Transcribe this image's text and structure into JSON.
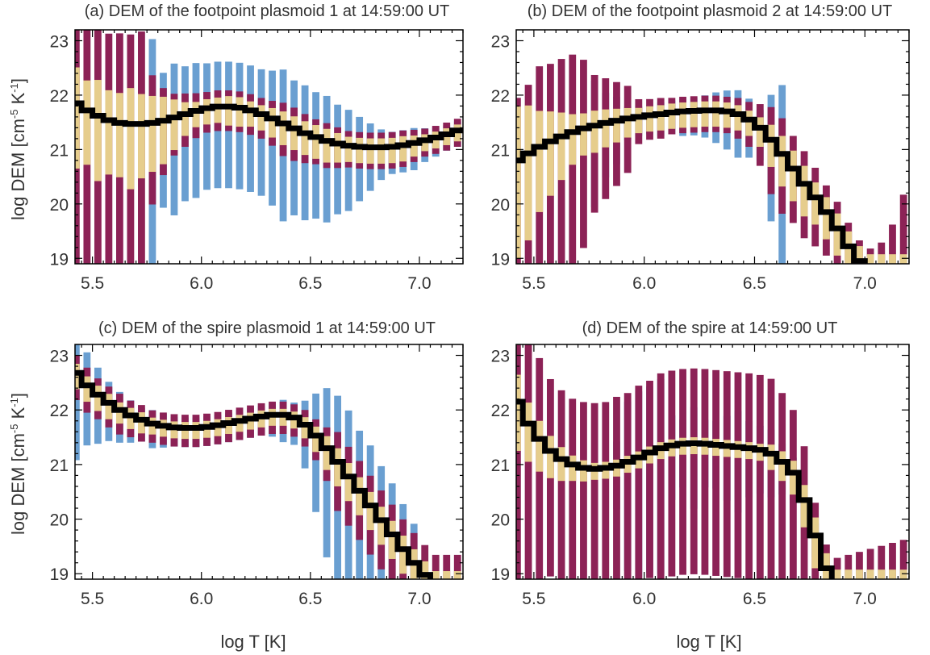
{
  "figure": {
    "xlabel": "log T [K]",
    "ylabel": "log DEM [cm",
    "ylabel_sup1": "-5",
    "ylabel_mid": " K",
    "ylabel_sup2": "-1",
    "ylabel_end": "]"
  },
  "colors": {
    "outer": "#8c2256",
    "middle": "#e6cd8c",
    "blue": "#6a9fd1",
    "line": "#000000",
    "axis": "#000000",
    "text": "#333333"
  },
  "chart_data": [
    {
      "type": "line",
      "title": "(a) DEM of the footpoint plasmoid 1 at 14:59:00 UT",
      "xlim": [
        5.42,
        7.2
      ],
      "ylim": [
        18.9,
        23.2
      ],
      "xticks": [
        "5.5",
        "6.0",
        "6.5",
        "7.0"
      ],
      "yticks": [
        "19",
        "20",
        "21",
        "22",
        "23"
      ],
      "series": [
        {
          "x": [
            5.425,
            5.475,
            5.525,
            5.575,
            5.625,
            5.675,
            5.725,
            5.775,
            5.825,
            5.875,
            5.925,
            5.975,
            6.025,
            6.075,
            6.125,
            6.175,
            6.225,
            6.275,
            6.325,
            6.375,
            6.425,
            6.475,
            6.525,
            6.575,
            6.625,
            6.675,
            6.725,
            6.775,
            6.825,
            6.875,
            6.925,
            6.975,
            7.025,
            7.075,
            7.125,
            7.175
          ],
          "y": [
            21.85,
            21.72,
            21.62,
            21.54,
            21.49,
            21.47,
            21.47,
            21.49,
            21.53,
            21.59,
            21.65,
            21.71,
            21.76,
            21.79,
            21.79,
            21.77,
            21.72,
            21.65,
            21.57,
            21.48,
            21.39,
            21.3,
            21.23,
            21.16,
            21.11,
            21.07,
            21.05,
            21.04,
            21.04,
            21.05,
            21.08,
            21.12,
            21.17,
            21.22,
            21.28,
            21.35
          ]
        }
      ]
    },
    {
      "type": "line",
      "title": "(b) DEM of the footpoint plasmoid 2 at 14:59:00 UT",
      "xlim": [
        5.42,
        7.2
      ],
      "ylim": [
        18.9,
        23.2
      ],
      "xticks": [
        "5.5",
        "6.0",
        "6.5",
        "7.0"
      ],
      "yticks": [
        "19",
        "20",
        "21",
        "22",
        "23"
      ],
      "series": [
        {
          "x": [
            5.425,
            5.475,
            5.525,
            5.575,
            5.625,
            5.675,
            5.725,
            5.775,
            5.825,
            5.875,
            5.925,
            5.975,
            6.025,
            6.075,
            6.125,
            6.175,
            6.225,
            6.275,
            6.325,
            6.375,
            6.425,
            6.475,
            6.525,
            6.575,
            6.625,
            6.675,
            6.725,
            6.775,
            6.825,
            6.875,
            6.925,
            6.975,
            7.025,
            7.075,
            7.125,
            7.175
          ],
          "y": [
            20.8,
            20.93,
            21.05,
            21.15,
            21.24,
            21.32,
            21.39,
            21.44,
            21.49,
            21.53,
            21.57,
            21.6,
            21.63,
            21.65,
            21.68,
            21.7,
            21.71,
            21.72,
            21.72,
            21.7,
            21.65,
            21.55,
            21.4,
            21.18,
            20.92,
            20.65,
            20.37,
            20.12,
            19.85,
            19.55,
            19.22,
            18.95,
            18.8,
            18.8,
            18.8,
            18.8
          ]
        }
      ]
    },
    {
      "type": "line",
      "title": "(c) DEM of the spire plasmoid 1 at 14:59:00 UT",
      "xlim": [
        5.42,
        7.2
      ],
      "ylim": [
        18.9,
        23.2
      ],
      "xticks": [
        "5.5",
        "6.0",
        "6.5",
        "7.0"
      ],
      "yticks": [
        "19",
        "20",
        "21",
        "22",
        "23"
      ],
      "series": [
        {
          "x": [
            5.425,
            5.475,
            5.525,
            5.575,
            5.625,
            5.675,
            5.725,
            5.775,
            5.825,
            5.875,
            5.925,
            5.975,
            6.025,
            6.075,
            6.125,
            6.175,
            6.225,
            6.275,
            6.325,
            6.375,
            6.425,
            6.475,
            6.525,
            6.575,
            6.625,
            6.675,
            6.725,
            6.775,
            6.825,
            6.875,
            6.925,
            6.975,
            7.025,
            7.075,
            7.125,
            7.175
          ],
          "y": [
            22.68,
            22.45,
            22.28,
            22.13,
            22.0,
            21.9,
            21.82,
            21.75,
            21.71,
            21.68,
            21.67,
            21.67,
            21.69,
            21.72,
            21.76,
            21.8,
            21.84,
            21.88,
            21.91,
            21.91,
            21.86,
            21.73,
            21.53,
            21.3,
            21.05,
            20.78,
            20.52,
            20.25,
            19.98,
            19.72,
            19.45,
            19.2,
            18.98,
            18.8,
            18.8,
            18.8
          ]
        }
      ]
    },
    {
      "type": "line",
      "title": "(d) DEM of the spire at 14:59:00 UT",
      "xlim": [
        5.42,
        7.2
      ],
      "ylim": [
        18.9,
        23.2
      ],
      "xticks": [
        "5.5",
        "6.0",
        "6.5",
        "7.0"
      ],
      "yticks": [
        "19",
        "20",
        "21",
        "22",
        "23"
      ],
      "series": [
        {
          "x": [
            5.425,
            5.475,
            5.525,
            5.575,
            5.625,
            5.675,
            5.725,
            5.775,
            5.825,
            5.875,
            5.925,
            5.975,
            6.025,
            6.075,
            6.125,
            6.175,
            6.225,
            6.275,
            6.325,
            6.375,
            6.425,
            6.475,
            6.525,
            6.575,
            6.625,
            6.675,
            6.725,
            6.775,
            6.825,
            6.875,
            6.925,
            6.975,
            7.025,
            7.075,
            7.125,
            7.175
          ],
          "y": [
            22.15,
            21.75,
            21.47,
            21.25,
            21.1,
            21.0,
            20.94,
            20.92,
            20.94,
            20.98,
            21.05,
            21.13,
            21.22,
            21.3,
            21.35,
            21.38,
            21.39,
            21.38,
            21.36,
            21.34,
            21.32,
            21.3,
            21.27,
            21.2,
            21.05,
            20.85,
            20.35,
            19.7,
            19.1,
            18.8,
            18.8,
            18.8,
            18.8,
            18.8,
            18.8,
            18.8
          ]
        }
      ]
    }
  ]
}
